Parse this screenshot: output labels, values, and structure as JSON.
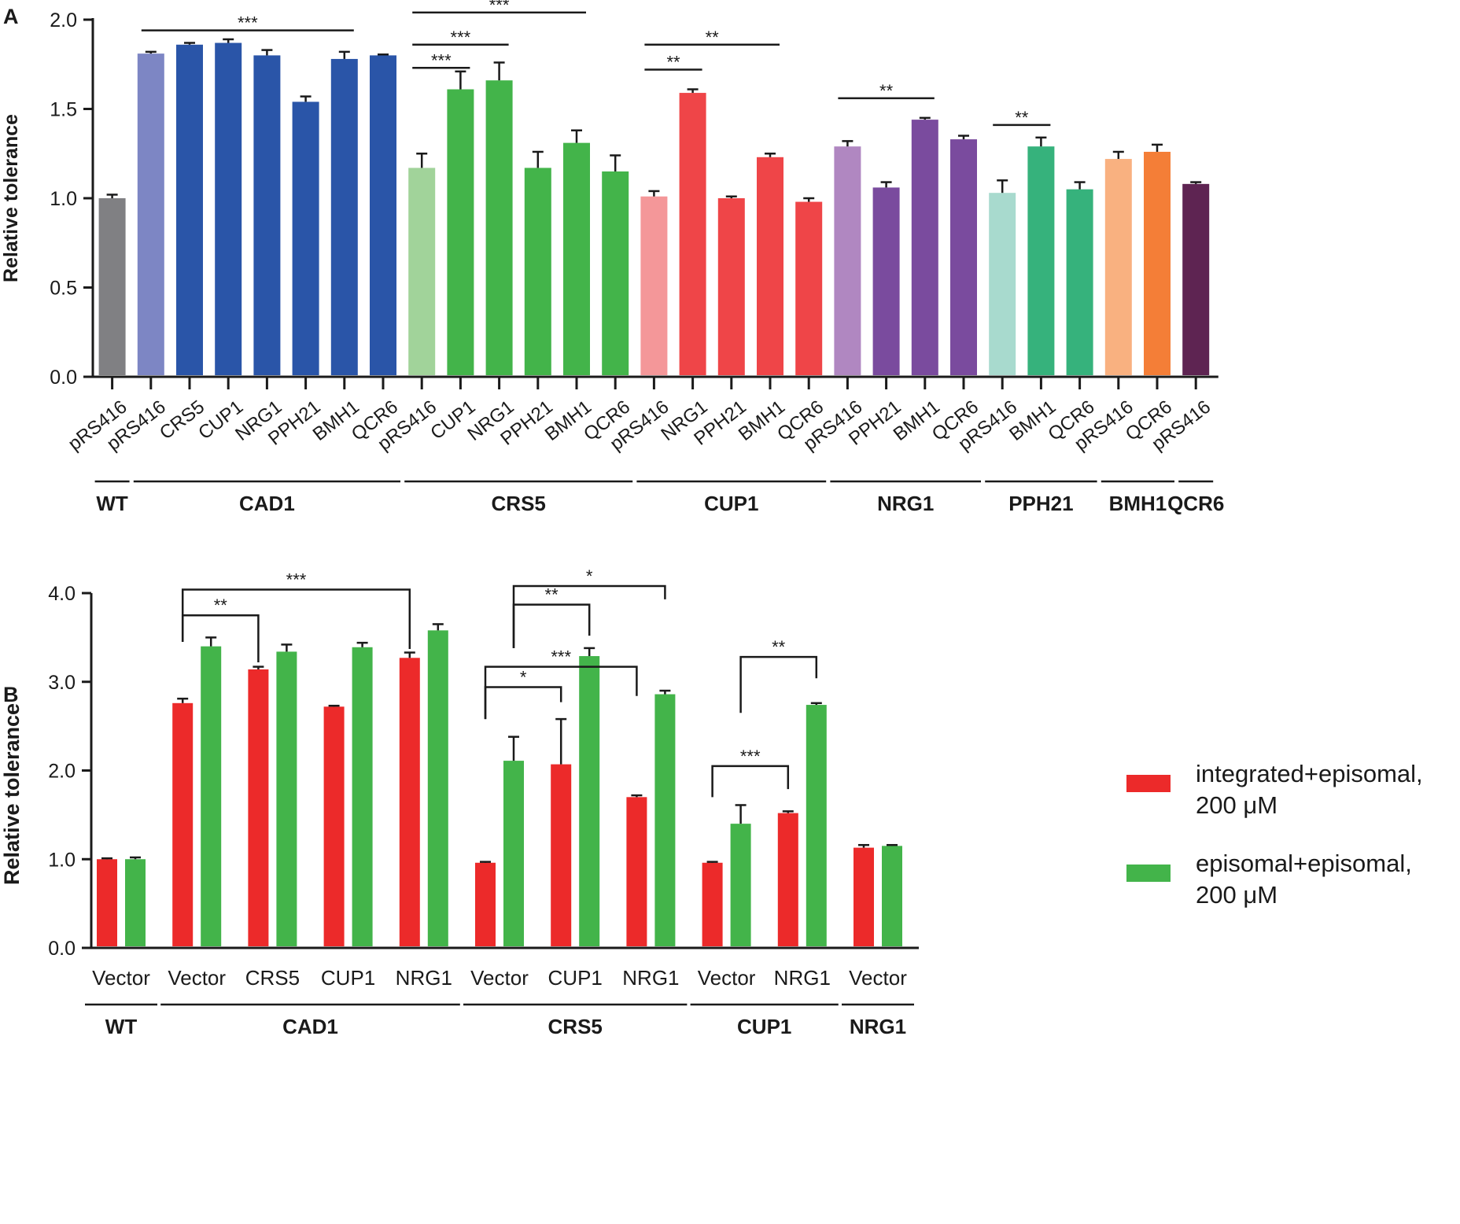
{
  "chart_data": [
    {
      "panel": "A",
      "type": "bar",
      "title": "",
      "xlabel": "",
      "ylabel": "Relative tolerance",
      "ylim": [
        0,
        2.0
      ],
      "yticks": [
        "0.0",
        "0.5",
        "1.0",
        "1.5",
        "2.0"
      ],
      "categories": [
        "pRS416",
        "pRS416",
        "CRS5",
        "CUP1",
        "NRG1",
        "PPH21",
        "BMH1",
        "QCR6",
        "pRS416",
        "CUP1",
        "NRG1",
        "PPH21",
        "BMH1",
        "QCR6",
        "pRS416",
        "NRG1",
        "PPH21",
        "BMH1",
        "QCR6",
        "pRS416",
        "PPH21",
        "BMH1",
        "QCR6",
        "pRS416",
        "BMH1",
        "QCR6",
        "pRS416",
        "QCR6",
        "pRS416"
      ],
      "values": [
        1.0,
        1.81,
        1.86,
        1.87,
        1.8,
        1.54,
        1.78,
        1.8,
        1.17,
        1.61,
        1.66,
        1.17,
        1.31,
        1.15,
        1.01,
        1.59,
        1.0,
        1.23,
        0.98,
        1.29,
        1.06,
        1.44,
        1.33,
        1.03,
        1.29,
        1.05,
        1.22,
        1.26,
        1.08
      ],
      "errors": [
        0.02,
        0.01,
        0.01,
        0.02,
        0.03,
        0.03,
        0.04,
        0.005,
        0.08,
        0.1,
        0.1,
        0.09,
        0.07,
        0.09,
        0.03,
        0.02,
        0.01,
        0.02,
        0.02,
        0.03,
        0.03,
        0.01,
        0.02,
        0.07,
        0.05,
        0.04,
        0.04,
        0.04,
        0.01
      ],
      "colors": [
        "#808083",
        "#7d86c4",
        "#2a55a8",
        "#2a55a8",
        "#2a55a8",
        "#2a55a8",
        "#2a55a8",
        "#2a55a8",
        "#a1d39a",
        "#43b44a",
        "#43b44a",
        "#43b44a",
        "#43b44a",
        "#43b44a",
        "#f49799",
        "#ef4548",
        "#ef4548",
        "#ef4548",
        "#ef4548",
        "#b087c1",
        "#7a4b9e",
        "#7a4b9e",
        "#7a4b9e",
        "#a8dace",
        "#36b27c",
        "#36b27c",
        "#f9b180",
        "#f47e37",
        "#5e2452"
      ],
      "groups": [
        {
          "label": "WT",
          "start": 0,
          "end": 0
        },
        {
          "label": "CAD1",
          "start": 1,
          "end": 7
        },
        {
          "label": "CRS5",
          "start": 8,
          "end": 13
        },
        {
          "label": "CUP1",
          "start": 14,
          "end": 18
        },
        {
          "label": "NRG1",
          "start": 19,
          "end": 22
        },
        {
          "label": "PPH21",
          "start": 23,
          "end": 25
        },
        {
          "label": "BMH1",
          "start": 26,
          "end": 27
        },
        {
          "label": "QCR6",
          "start": 28,
          "end": 28
        }
      ],
      "annotations": [
        {
          "text": "***",
          "from": 1,
          "to": 6,
          "y": 1.94
        },
        {
          "text": "***",
          "from": 8,
          "to": 12,
          "y": 2.04
        },
        {
          "text": "***",
          "from": 8,
          "to": 10,
          "y": 1.86
        },
        {
          "text": "***",
          "from": 8,
          "to": 9,
          "y": 1.73
        },
        {
          "text": "**",
          "from": 14,
          "to": 17,
          "y": 1.86
        },
        {
          "text": "**",
          "from": 14,
          "to": 15,
          "y": 1.72
        },
        {
          "text": "**",
          "from": 19,
          "to": 21,
          "y": 1.56
        },
        {
          "text": "**",
          "from": 23,
          "to": 24,
          "y": 1.41
        }
      ]
    },
    {
      "panel": "B",
      "type": "bar",
      "title": "",
      "xlabel": "",
      "ylabel": "Relative tolerance",
      "ylim": [
        0,
        4.0
      ],
      "yticks": [
        "0.0",
        "1.0",
        "2.0",
        "3.0",
        "4.0"
      ],
      "categories": [
        "Vector",
        "Vector",
        "CRS5",
        "CUP1",
        "NRG1",
        "Vector",
        "CUP1",
        "NRG1",
        "Vector",
        "NRG1",
        "Vector"
      ],
      "series": [
        {
          "name": "integrated+episomal, 200 μM",
          "legend_lines": [
            "integrated+episomal,",
            "200 μM"
          ],
          "color": "#ec2a2a",
          "values": [
            1.0,
            2.76,
            3.14,
            2.72,
            3.27,
            0.96,
            2.07,
            1.7,
            0.96,
            1.52,
            1.13
          ],
          "errors": [
            0.01,
            0.05,
            0.03,
            0.01,
            0.06,
            0.01,
            0.51,
            0.02,
            0.01,
            0.02,
            0.03
          ]
        },
        {
          "name": "episomal+episomal, 200 μM",
          "legend_lines": [
            "episomal+episomal,",
            "200 μM"
          ],
          "color": "#43b44a",
          "values": [
            1.0,
            3.4,
            3.34,
            3.39,
            3.58,
            2.11,
            3.29,
            2.86,
            1.4,
            2.74,
            1.15
          ],
          "errors": [
            0.02,
            0.1,
            0.08,
            0.05,
            0.07,
            0.27,
            0.09,
            0.04,
            0.21,
            0.02,
            0.01
          ]
        }
      ],
      "groups": [
        {
          "label": "WT",
          "start": 0,
          "end": 0
        },
        {
          "label": "CAD1",
          "start": 1,
          "end": 4
        },
        {
          "label": "CRS5",
          "start": 5,
          "end": 7
        },
        {
          "label": "CUP1",
          "start": 8,
          "end": 9
        },
        {
          "label": "NRG1",
          "start": 10,
          "end": 10
        }
      ],
      "brackets": [
        {
          "text": "**",
          "from": [
            1,
            0
          ],
          "to": [
            2,
            0
          ],
          "y": 3.75,
          "left_bottom": 3.45,
          "right_bottom": 3.22
        },
        {
          "text": "***",
          "from": [
            1,
            0
          ],
          "to": [
            4,
            0
          ],
          "y": 4.04,
          "left_bottom": 3.45,
          "right_bottom": 3.37
        },
        {
          "text": "*",
          "from": [
            5,
            0
          ],
          "to": [
            6,
            0
          ],
          "y": 2.94,
          "left_bottom": 2.58,
          "right_bottom": 2.77
        },
        {
          "text": "***",
          "from": [
            5,
            0
          ],
          "to": [
            7,
            0
          ],
          "y": 3.17,
          "left_bottom": 2.58,
          "right_bottom": 2.84
        },
        {
          "text": "**",
          "from": [
            5,
            1
          ],
          "to": [
            6,
            1
          ],
          "y": 3.87,
          "left_bottom": 3.38,
          "right_bottom": 3.52
        },
        {
          "text": "*",
          "from": [
            5,
            1
          ],
          "to": [
            7,
            1
          ],
          "y": 4.08,
          "left_bottom": 3.38,
          "right_bottom": 3.93
        },
        {
          "text": "***",
          "from": [
            8,
            0
          ],
          "to": [
            9,
            0
          ],
          "y": 2.05,
          "left_bottom": 1.7,
          "right_bottom": 1.79
        },
        {
          "text": "**",
          "from": [
            8,
            1
          ],
          "to": [
            9,
            1
          ],
          "y": 3.28,
          "left_bottom": 2.65,
          "right_bottom": 3.04
        }
      ]
    }
  ],
  "panel_labels": {
    "a": "A",
    "b": "B"
  }
}
